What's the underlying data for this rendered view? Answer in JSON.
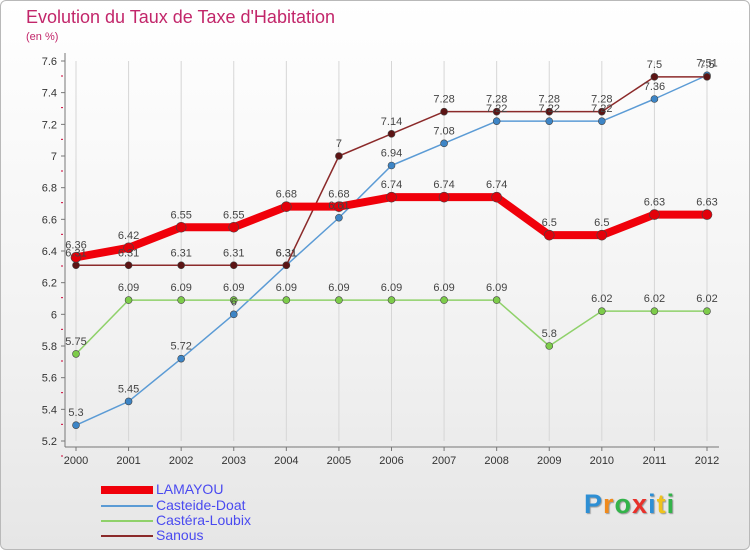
{
  "title": "Evolution du Taux de Taxe d'Habitation",
  "subtitle": "(en %)",
  "logo": "Proxiti",
  "chart_data": {
    "type": "line",
    "title": "Evolution du Taux de Taxe d'Habitation",
    "ylabel": "(en %)",
    "xlabel": "",
    "x": [
      "2000",
      "2001",
      "2002",
      "2003",
      "2004",
      "2005",
      "2006",
      "2007",
      "2008",
      "2009",
      "2010",
      "2011",
      "2012"
    ],
    "ylim": [
      5.2,
      7.6
    ],
    "yticks": [
      "5.2",
      "5.4",
      "5.6",
      "5.8",
      "6",
      "6.2",
      "6.4",
      "6.6",
      "6.8",
      "7",
      "7.2",
      "7.4",
      "7.6"
    ],
    "grid": "x",
    "legend_position": "bottom-left",
    "series": [
      {
        "name": "LAMAYOU",
        "color": "#f0000a",
        "values": [
          6.36,
          6.42,
          6.55,
          6.55,
          6.68,
          6.68,
          6.74,
          6.74,
          6.74,
          6.5,
          6.5,
          6.63,
          6.63
        ],
        "labels": [
          "6.36",
          "6.42",
          "6.55",
          "6.55",
          "6.68",
          "6.68",
          "6.74",
          "6.74",
          "6.74",
          "6.5",
          "6.5",
          "6.63",
          "6.63"
        ]
      },
      {
        "name": "Casteide-Doat",
        "color": "#5b9bd5",
        "values": [
          5.3,
          5.45,
          5.72,
          6.0,
          6.31,
          6.61,
          6.94,
          7.08,
          7.22,
          7.22,
          7.22,
          7.36,
          7.51
        ],
        "labels": [
          "5.3",
          "5.45",
          "5.72",
          "6",
          "6.31",
          "6.61",
          "6.94",
          "7.08",
          "7.22",
          "7.22",
          "7.22",
          "7.36",
          "7.51"
        ]
      },
      {
        "name": "Castéra-Loubix",
        "color": "#8fd16a",
        "values": [
          5.75,
          6.09,
          6.09,
          6.09,
          6.09,
          6.09,
          6.09,
          6.09,
          6.09,
          5.8,
          6.02,
          6.02,
          6.02
        ],
        "labels": [
          "5.75",
          "6.09",
          "6.09",
          "6.09",
          "6.09",
          "6.09",
          "6.09",
          "6.09",
          "6.09",
          "5.8",
          "6.02",
          "6.02",
          "6.02"
        ]
      },
      {
        "name": "Sanous",
        "color": "#8b2a2a",
        "values": [
          6.31,
          6.31,
          6.31,
          6.31,
          6.31,
          7.0,
          7.14,
          7.28,
          7.28,
          7.28,
          7.28,
          7.5,
          7.5
        ],
        "labels": [
          "6.31",
          "6.31",
          "6.31",
          "6.31",
          "6.31",
          "7",
          "7.14",
          "7.28",
          "7.28",
          "7.28",
          "7.28",
          "7.5",
          "7.5"
        ]
      }
    ]
  }
}
